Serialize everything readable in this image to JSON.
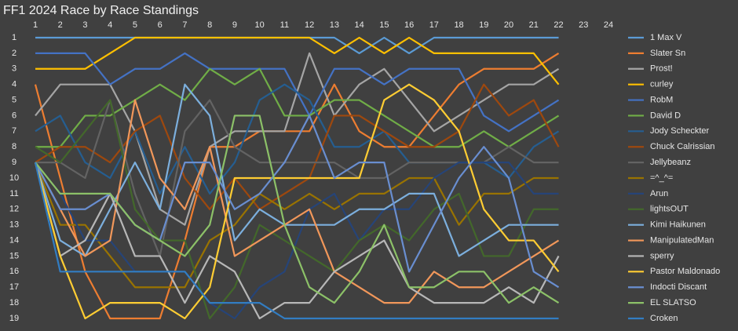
{
  "chart_data": {
    "type": "line",
    "title": "FF1 2024 Race by Race Standings",
    "x": [
      1,
      2,
      3,
      4,
      5,
      6,
      7,
      8,
      9,
      10,
      11,
      12,
      13,
      14,
      15,
      16,
      17,
      18,
      19,
      20,
      21,
      22
    ],
    "xlim": [
      1,
      24
    ],
    "xticks": [
      1,
      2,
      3,
      4,
      5,
      6,
      7,
      8,
      9,
      10,
      11,
      12,
      13,
      14,
      15,
      16,
      17,
      18,
      19,
      20,
      21,
      22,
      23,
      24
    ],
    "x_axis_position": "top",
    "ylim": [
      1,
      19
    ],
    "yticks": [
      1,
      2,
      3,
      4,
      5,
      6,
      7,
      8,
      9,
      10,
      11,
      12,
      13,
      14,
      15,
      16,
      17,
      18,
      19
    ],
    "y_inverted": true,
    "grid": false,
    "legend": "right",
    "series": [
      {
        "name": "1 Max V",
        "color": "#5b9bd5",
        "values": [
          1,
          1,
          1,
          1,
          1,
          1,
          1,
          1,
          1,
          1,
          1,
          1,
          1,
          2,
          1,
          2,
          1,
          1,
          1,
          1,
          1,
          1
        ]
      },
      {
        "name": "Slater Sn",
        "color": "#ed7d31",
        "values": [
          4,
          10,
          16,
          19,
          19,
          19,
          14,
          8,
          8,
          7,
          7,
          7,
          4,
          7,
          8,
          8,
          6,
          4,
          3,
          3,
          3,
          2
        ]
      },
      {
        "name": "Prost!",
        "color": "#a5a5a5",
        "values": [
          6,
          4,
          4,
          4,
          7,
          12,
          13,
          8,
          7,
          7,
          7,
          2,
          6,
          4,
          3,
          5,
          7,
          6,
          5,
          4,
          4,
          3
        ]
      },
      {
        "name": "curley",
        "color": "#ffc000",
        "values": [
          3,
          3,
          3,
          2,
          1,
          1,
          1,
          1,
          1,
          1,
          1,
          1,
          2,
          1,
          2,
          1,
          2,
          2,
          2,
          2,
          2,
          4
        ]
      },
      {
        "name": "RobM",
        "color": "#4472c4",
        "values": [
          2,
          2,
          2,
          4,
          3,
          3,
          2,
          3,
          3,
          3,
          3,
          6,
          3,
          3,
          4,
          3,
          3,
          3,
          6,
          7,
          6,
          5
        ]
      },
      {
        "name": "David D",
        "color": "#70ad47",
        "values": [
          8,
          8,
          6,
          6,
          5,
          4,
          5,
          3,
          4,
          3,
          6,
          6,
          5,
          5,
          6,
          7,
          8,
          8,
          7,
          8,
          7,
          6
        ]
      },
      {
        "name": "Jody Scheckter",
        "color": "#255e91",
        "values": [
          7,
          6,
          9,
          10,
          7,
          11,
          8,
          11,
          9,
          5,
          4,
          5,
          8,
          8,
          7,
          9,
          9,
          9,
          9,
          10,
          8,
          7
        ]
      },
      {
        "name": "Chuck Calrissian",
        "color": "#9e480e",
        "values": [
          9,
          8,
          8,
          9,
          7,
          6,
          10,
          12,
          10,
          12,
          11,
          10,
          6,
          6,
          7,
          8,
          8,
          7,
          4,
          6,
          5,
          8
        ]
      },
      {
        "name": "Jellybeanz",
        "color": "#636363",
        "values": [
          9,
          9,
          10,
          5,
          11,
          15,
          7,
          5,
          8,
          9,
          9,
          9,
          9,
          10,
          10,
          9,
          9,
          9,
          9,
          8,
          9,
          9
        ]
      },
      {
        "name": "=^_^=",
        "color": "#997300",
        "values": [
          9,
          13,
          13,
          15,
          17,
          17,
          17,
          14,
          13,
          11,
          12,
          11,
          12,
          11,
          11,
          10,
          10,
          13,
          11,
          11,
          10,
          10
        ]
      },
      {
        "name": "Arun",
        "color": "#264478",
        "values": [
          9,
          11,
          14,
          14,
          16,
          16,
          16,
          18,
          19,
          17,
          16,
          12,
          11,
          14,
          12,
          12,
          10,
          9,
          9,
          9,
          11,
          11
        ]
      },
      {
        "name": "lightsOUT",
        "color": "#43682b",
        "values": [
          8,
          9,
          7,
          5,
          12,
          14,
          14,
          19,
          17,
          13,
          14,
          15,
          16,
          14,
          13,
          14,
          12,
          11,
          15,
          15,
          12,
          12
        ]
      },
      {
        "name": "Kimi Haikunen",
        "color": "#7cafdd",
        "values": [
          9,
          14,
          15,
          12,
          9,
          12,
          4,
          6,
          14,
          12,
          13,
          13,
          13,
          12,
          12,
          11,
          11,
          15,
          14,
          13,
          13,
          13
        ]
      },
      {
        "name": "ManipulatedMan",
        "color": "#f1975a",
        "values": [
          9,
          12,
          15,
          14,
          5,
          10,
          12,
          8,
          15,
          14,
          13,
          12,
          16,
          17,
          18,
          18,
          16,
          17,
          17,
          16,
          15,
          14
        ]
      },
      {
        "name": "sperry",
        "color": "#b7b7b7",
        "values": [
          9,
          15,
          14,
          11,
          15,
          15,
          18,
          15,
          16,
          19,
          18,
          18,
          16,
          15,
          14,
          17,
          18,
          18,
          18,
          17,
          18,
          15
        ]
      },
      {
        "name": "Pastor Maldonado",
        "color": "#ffcd33",
        "values": [
          9,
          15,
          19,
          18,
          18,
          18,
          19,
          17,
          10,
          10,
          10,
          10,
          10,
          10,
          5,
          4,
          5,
          7,
          12,
          14,
          14,
          16
        ]
      },
      {
        "name": "Indocti Discant",
        "color": "#698ed0",
        "values": [
          9,
          12,
          12,
          11,
          13,
          14,
          9,
          9,
          12,
          11,
          9,
          6,
          10,
          9,
          9,
          16,
          13,
          10,
          8,
          10,
          16,
          17
        ]
      },
      {
        "name": "EL SLATSO",
        "color": "#8cc168",
        "values": [
          9,
          11,
          11,
          11,
          13,
          14,
          15,
          13,
          6,
          6,
          13,
          17,
          18,
          16,
          13,
          17,
          17,
          16,
          16,
          18,
          17,
          18
        ]
      },
      {
        "name": "Croken",
        "color": "#327dc2",
        "values": [
          9,
          16,
          16,
          16,
          16,
          16,
          16,
          18,
          18,
          18,
          19,
          19,
          19,
          19,
          19,
          19,
          19,
          19,
          19,
          19,
          19,
          19
        ]
      }
    ]
  }
}
